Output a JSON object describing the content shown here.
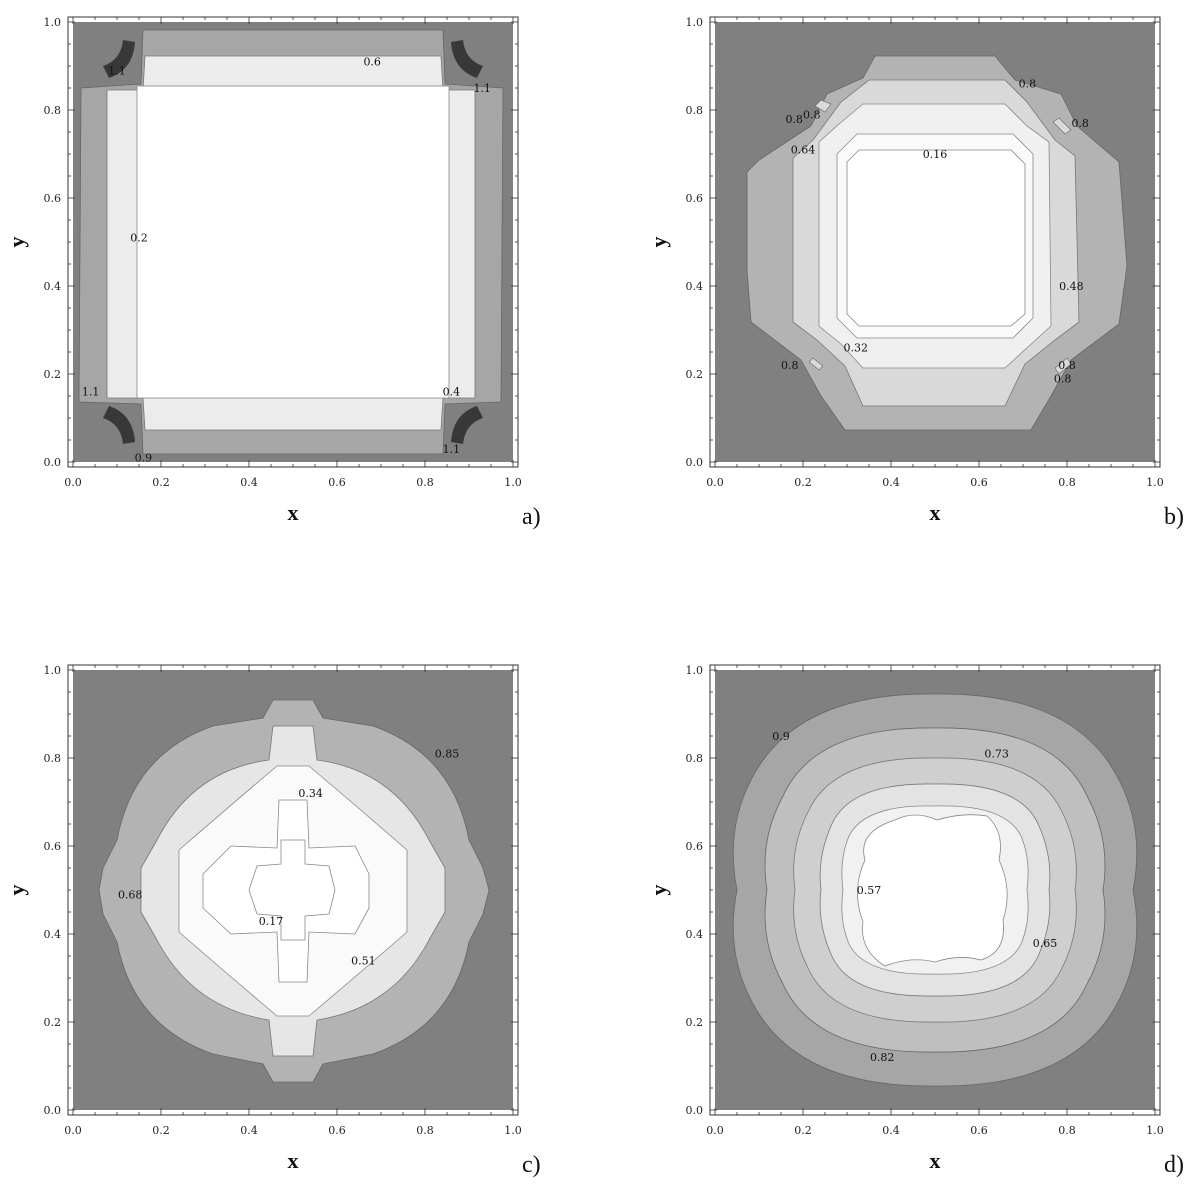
{
  "chart_data": [
    {
      "panel": "a)",
      "type": "contour",
      "xlabel": "x",
      "ylabel": "y",
      "xlim": [
        0.0,
        1.0
      ],
      "ylim": [
        0.0,
        1.0
      ],
      "ticks": [
        "0.0",
        "0.2",
        "0.4",
        "0.6",
        "0.8",
        "1.0"
      ],
      "grid": false,
      "contour_labels": [
        {
          "text": "0.6",
          "x": 0.68,
          "y": 0.91
        },
        {
          "text": "0.2",
          "x": 0.15,
          "y": 0.51
        },
        {
          "text": "0.4",
          "x": 0.86,
          "y": 0.16
        },
        {
          "text": "1.1",
          "x": 0.93,
          "y": 0.85
        },
        {
          "text": "1.1",
          "x": 0.04,
          "y": 0.16
        },
        {
          "text": "1.1",
          "x": 0.1,
          "y": 0.89
        },
        {
          "text": "1.1",
          "x": 0.86,
          "y": 0.03
        },
        {
          "text": "0.9",
          "x": 0.16,
          "y": 0.01
        }
      ]
    },
    {
      "panel": "b)",
      "type": "contour",
      "xlabel": "x",
      "ylabel": "y",
      "xlim": [
        0.0,
        1.0
      ],
      "ylim": [
        0.0,
        1.0
      ],
      "ticks": [
        "0.0",
        "0.2",
        "0.4",
        "0.6",
        "0.8",
        "1.0"
      ],
      "grid": false,
      "contour_labels": [
        {
          "text": "0.16",
          "x": 0.5,
          "y": 0.7
        },
        {
          "text": "0.32",
          "x": 0.32,
          "y": 0.26
        },
        {
          "text": "0.48",
          "x": 0.81,
          "y": 0.4
        },
        {
          "text": "0.64",
          "x": 0.2,
          "y": 0.71
        },
        {
          "text": "0.8",
          "x": 0.71,
          "y": 0.86
        },
        {
          "text": "0.8",
          "x": 0.83,
          "y": 0.77
        },
        {
          "text": "0.8",
          "x": 0.18,
          "y": 0.78
        },
        {
          "text": "0.8",
          "x": 0.22,
          "y": 0.79
        },
        {
          "text": "0.8",
          "x": 0.17,
          "y": 0.22
        },
        {
          "text": "0.8",
          "x": 0.8,
          "y": 0.22
        },
        {
          "text": "0.8",
          "x": 0.79,
          "y": 0.19
        }
      ]
    },
    {
      "panel": "c)",
      "type": "contour",
      "xlabel": "x",
      "ylabel": "y",
      "xlim": [
        0.0,
        1.0
      ],
      "ylim": [
        0.0,
        1.0
      ],
      "ticks": [
        "0.0",
        "0.2",
        "0.4",
        "0.6",
        "0.8",
        "1.0"
      ],
      "grid": false,
      "contour_labels": [
        {
          "text": "0.85",
          "x": 0.85,
          "y": 0.81
        },
        {
          "text": "0.34",
          "x": 0.54,
          "y": 0.72
        },
        {
          "text": "0.68",
          "x": 0.13,
          "y": 0.49
        },
        {
          "text": "0.17",
          "x": 0.45,
          "y": 0.43
        },
        {
          "text": "0.51",
          "x": 0.66,
          "y": 0.34
        }
      ]
    },
    {
      "panel": "d)",
      "type": "contour",
      "xlabel": "x",
      "ylabel": "y",
      "xlim": [
        0.0,
        1.0
      ],
      "ylim": [
        0.0,
        1.0
      ],
      "ticks": [
        "0.0",
        "0.2",
        "0.4",
        "0.6",
        "0.8",
        "1.0"
      ],
      "grid": false,
      "contour_labels": [
        {
          "text": "0.9",
          "x": 0.15,
          "y": 0.85
        },
        {
          "text": "0.73",
          "x": 0.64,
          "y": 0.81
        },
        {
          "text": "0.57",
          "x": 0.35,
          "y": 0.5
        },
        {
          "text": "0.65",
          "x": 0.75,
          "y": 0.38
        },
        {
          "text": "0.82",
          "x": 0.38,
          "y": 0.12
        }
      ]
    }
  ]
}
